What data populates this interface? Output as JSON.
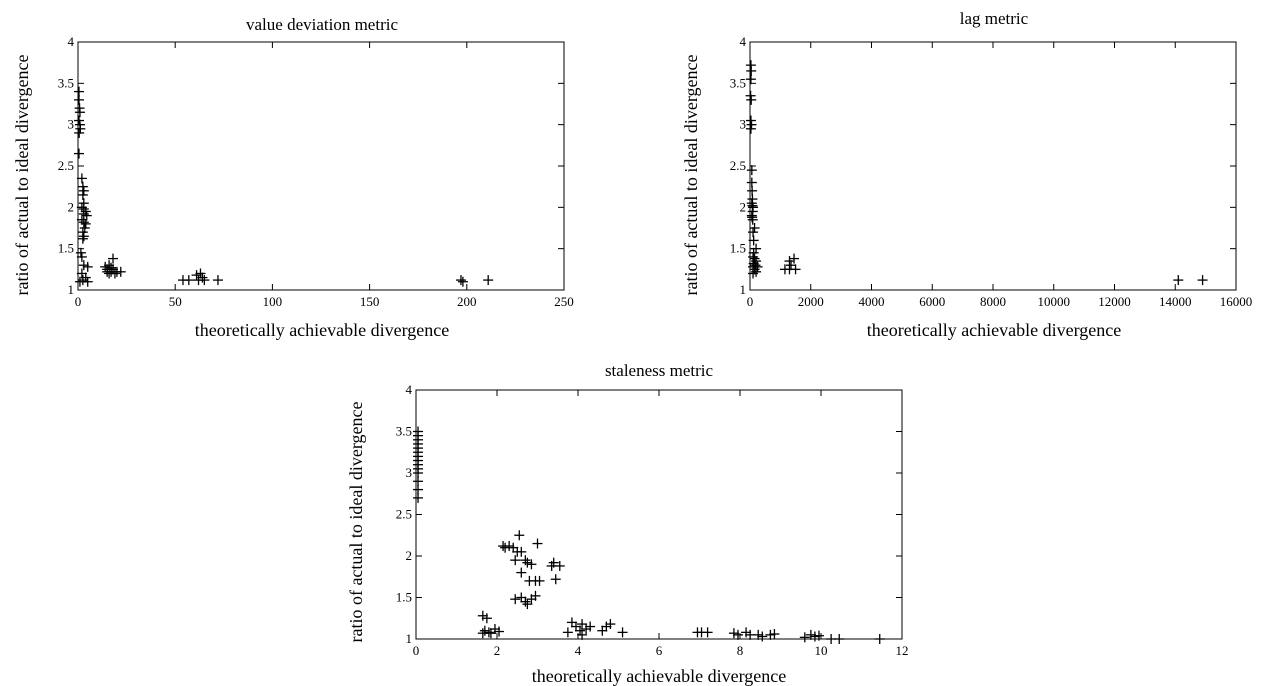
{
  "chart_data": [
    {
      "type": "scatter",
      "title": "value deviation metric",
      "xlabel": "theoretically achievable divergence",
      "ylabel": "ratio of actual to ideal divergence",
      "xlim": [
        0,
        250
      ],
      "ylim": [
        1,
        4
      ],
      "xticks": [
        0,
        50,
        100,
        150,
        200,
        250
      ],
      "yticks": [
        1,
        1.5,
        2,
        2.5,
        3,
        3.5,
        4
      ],
      "marker": "plus",
      "points": [
        [
          0.5,
          3.4
        ],
        [
          0.5,
          3.3
        ],
        [
          0.8,
          3.2
        ],
        [
          1,
          3.15
        ],
        [
          0.5,
          3.05
        ],
        [
          1,
          3.0
        ],
        [
          1.2,
          2.95
        ],
        [
          0.6,
          2.9
        ],
        [
          0.5,
          2.65
        ],
        [
          2,
          2.35
        ],
        [
          2.5,
          2.25
        ],
        [
          3,
          2.2
        ],
        [
          2.5,
          2.15
        ],
        [
          3,
          2.05
        ],
        [
          2,
          2.0
        ],
        [
          3,
          1.98
        ],
        [
          4,
          1.95
        ],
        [
          3,
          1.92
        ],
        [
          4.5,
          1.9
        ],
        [
          2,
          1.85
        ],
        [
          3,
          1.82
        ],
        [
          4,
          1.8
        ],
        [
          3.5,
          1.75
        ],
        [
          2.5,
          1.7
        ],
        [
          3,
          1.65
        ],
        [
          2.5,
          1.62
        ],
        [
          1.5,
          1.45
        ],
        [
          2,
          1.4
        ],
        [
          3,
          1.3
        ],
        [
          5,
          1.28
        ],
        [
          2,
          1.2
        ],
        [
          4,
          1.15
        ],
        [
          2.5,
          1.12
        ],
        [
          1,
          1.1
        ],
        [
          5,
          1.1
        ],
        [
          14,
          1.28
        ],
        [
          15,
          1.25
        ],
        [
          16,
          1.3
        ],
        [
          17,
          1.22
        ],
        [
          18,
          1.38
        ],
        [
          16,
          1.2
        ],
        [
          18,
          1.25
        ],
        [
          19,
          1.2
        ],
        [
          20,
          1.22
        ],
        [
          17,
          1.27
        ],
        [
          22,
          1.22
        ],
        [
          15,
          1.22
        ],
        [
          54,
          1.12
        ],
        [
          57,
          1.12
        ],
        [
          61,
          1.18
        ],
        [
          62,
          1.12
        ],
        [
          63,
          1.2
        ],
        [
          64,
          1.15
        ],
        [
          65,
          1.12
        ],
        [
          72,
          1.12
        ],
        [
          197,
          1.12
        ],
        [
          198,
          1.1
        ],
        [
          211,
          1.12
        ]
      ]
    },
    {
      "type": "scatter",
      "title": "lag metric",
      "xlabel": "theoretically achievable divergence",
      "ylabel": "ratio of actual to ideal divergence",
      "xlim": [
        0,
        16000
      ],
      "ylim": [
        1,
        4
      ],
      "xticks": [
        0,
        2000,
        4000,
        6000,
        8000,
        10000,
        12000,
        14000,
        16000
      ],
      "yticks": [
        1,
        1.5,
        2,
        2.5,
        3,
        3.5,
        4
      ],
      "marker": "plus",
      "points": [
        [
          30,
          3.72
        ],
        [
          40,
          3.65
        ],
        [
          30,
          3.55
        ],
        [
          20,
          3.35
        ],
        [
          40,
          3.3
        ],
        [
          30,
          3.05
        ],
        [
          50,
          3.0
        ],
        [
          30,
          2.95
        ],
        [
          60,
          2.45
        ],
        [
          60,
          2.3
        ],
        [
          70,
          2.2
        ],
        [
          80,
          2.1
        ],
        [
          60,
          2.05
        ],
        [
          80,
          2.02
        ],
        [
          100,
          2.0
        ],
        [
          90,
          1.95
        ],
        [
          60,
          1.9
        ],
        [
          70,
          1.88
        ],
        [
          90,
          1.85
        ],
        [
          150,
          1.75
        ],
        [
          100,
          1.7
        ],
        [
          120,
          1.6
        ],
        [
          200,
          1.5
        ],
        [
          120,
          1.45
        ],
        [
          100,
          1.4
        ],
        [
          150,
          1.38
        ],
        [
          200,
          1.35
        ],
        [
          120,
          1.32
        ],
        [
          180,
          1.3
        ],
        [
          100,
          1.28
        ],
        [
          250,
          1.28
        ],
        [
          150,
          1.25
        ],
        [
          200,
          1.22
        ],
        [
          100,
          1.2
        ],
        [
          1150,
          1.25
        ],
        [
          1300,
          1.25
        ],
        [
          1300,
          1.35
        ],
        [
          1350,
          1.3
        ],
        [
          1450,
          1.38
        ],
        [
          1500,
          1.25
        ],
        [
          14100,
          1.12
        ],
        [
          14900,
          1.12
        ]
      ]
    },
    {
      "type": "scatter",
      "title": "staleness metric",
      "xlabel": "theoretically achievable divergence",
      "ylabel": "ratio of actual to ideal divergence",
      "xlim": [
        0,
        12
      ],
      "ylim": [
        1,
        4
      ],
      "xticks": [
        0,
        2,
        4,
        6,
        8,
        10,
        12
      ],
      "yticks": [
        1,
        1.5,
        2,
        2.5,
        3,
        3.5,
        4
      ],
      "marker": "plus",
      "points": [
        [
          0.05,
          3.5
        ],
        [
          0.05,
          3.45
        ],
        [
          0.05,
          3.4
        ],
        [
          0.05,
          3.35
        ],
        [
          0.05,
          3.3
        ],
        [
          0.05,
          3.25
        ],
        [
          0.05,
          3.2
        ],
        [
          0.05,
          3.15
        ],
        [
          0.05,
          3.1
        ],
        [
          0.05,
          3.05
        ],
        [
          0.05,
          3.0
        ],
        [
          0.05,
          2.9
        ],
        [
          0.05,
          2.8
        ],
        [
          0.05,
          2.7
        ],
        [
          1.65,
          1.28
        ],
        [
          1.75,
          1.25
        ],
        [
          1.7,
          1.1
        ],
        [
          1.8,
          1.08
        ],
        [
          1.65,
          1.07
        ],
        [
          1.85,
          1.07
        ],
        [
          1.95,
          1.12
        ],
        [
          2.05,
          1.09
        ],
        [
          2.15,
          2.12
        ],
        [
          2.2,
          2.1
        ],
        [
          2.3,
          2.12
        ],
        [
          2.4,
          2.1
        ],
        [
          2.5,
          2.05
        ],
        [
          2.55,
          2.25
        ],
        [
          2.6,
          2.05
        ],
        [
          2.45,
          1.95
        ],
        [
          2.7,
          1.95
        ],
        [
          2.75,
          1.92
        ],
        [
          2.85,
          1.9
        ],
        [
          2.6,
          1.8
        ],
        [
          2.8,
          1.7
        ],
        [
          2.95,
          1.7
        ],
        [
          3.05,
          1.7
        ],
        [
          3.0,
          2.15
        ],
        [
          2.45,
          1.48
        ],
        [
          2.6,
          1.5
        ],
        [
          2.7,
          1.45
        ],
        [
          2.75,
          1.42
        ],
        [
          2.85,
          1.48
        ],
        [
          2.95,
          1.52
        ],
        [
          3.35,
          1.88
        ],
        [
          3.4,
          1.92
        ],
        [
          3.55,
          1.88
        ],
        [
          3.45,
          1.72
        ],
        [
          3.75,
          1.08
        ],
        [
          3.85,
          1.2
        ],
        [
          3.95,
          1.15
        ],
        [
          4.05,
          1.1
        ],
        [
          4.1,
          1.18
        ],
        [
          4.2,
          1.12
        ],
        [
          4.1,
          1.05
        ],
        [
          4.3,
          1.15
        ],
        [
          4.6,
          1.1
        ],
        [
          4.7,
          1.15
        ],
        [
          4.8,
          1.18
        ],
        [
          5.1,
          1.08
        ],
        [
          6.95,
          1.08
        ],
        [
          7.05,
          1.08
        ],
        [
          7.2,
          1.08
        ],
        [
          7.85,
          1.07
        ],
        [
          7.95,
          1.05
        ],
        [
          8.15,
          1.08
        ],
        [
          8.25,
          1.05
        ],
        [
          8.45,
          1.05
        ],
        [
          8.55,
          1.03
        ],
        [
          8.75,
          1.05
        ],
        [
          8.85,
          1.06
        ],
        [
          9.6,
          1.02
        ],
        [
          9.75,
          1.05
        ],
        [
          9.85,
          1.03
        ],
        [
          9.95,
          1.04
        ],
        [
          10.25,
          1.0
        ],
        [
          10.45,
          1.0
        ],
        [
          11.45,
          1.0
        ]
      ]
    }
  ]
}
